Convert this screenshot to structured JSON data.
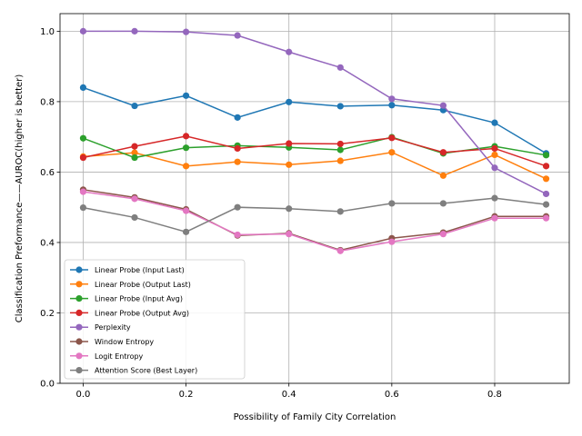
{
  "chart_data": {
    "type": "line",
    "title": "",
    "xlabel": "Possibility of Family City Correlation",
    "ylabel": "Classification Preformance——AUROC(higher is better)",
    "xlim": [
      -0.045,
      0.945
    ],
    "ylim": [
      0.0,
      1.05
    ],
    "grid": true,
    "legend_position": "lower-left",
    "x_ticks": [
      0.0,
      0.2,
      0.4,
      0.6,
      0.8
    ],
    "x_tick_labels": [
      "0.0",
      "0.2",
      "0.4",
      "0.6",
      "0.8"
    ],
    "y_ticks": [
      0.0,
      0.2,
      0.4,
      0.6,
      0.8,
      1.0
    ],
    "y_tick_labels": [
      "0.0",
      "0.2",
      "0.4",
      "0.6",
      "0.8",
      "1.0"
    ],
    "x": [
      0.0,
      0.1,
      0.2,
      0.3,
      0.4,
      0.5,
      0.6,
      0.7,
      0.8,
      0.9
    ],
    "series": [
      {
        "name": "Linear Probe (Input Last)",
        "color": "#1f77b4",
        "values": [
          0.84,
          0.788,
          0.817,
          0.755,
          0.799,
          0.787,
          0.79,
          0.776,
          0.74,
          0.653
        ]
      },
      {
        "name": "Linear Probe (Output Last)",
        "color": "#ff7f0e",
        "values": [
          0.644,
          0.655,
          0.617,
          0.629,
          0.621,
          0.632,
          0.656,
          0.59,
          0.649,
          0.581
        ]
      },
      {
        "name": "Linear Probe (Input Avg)",
        "color": "#2ca02c",
        "values": [
          0.696,
          0.641,
          0.669,
          0.675,
          0.67,
          0.663,
          0.699,
          0.653,
          0.673,
          0.648
        ]
      },
      {
        "name": "Linear Probe (Output Avg)",
        "color": "#d62728",
        "values": [
          0.641,
          0.673,
          0.702,
          0.667,
          0.681,
          0.68,
          0.697,
          0.656,
          0.667,
          0.617
        ]
      },
      {
        "name": "Perplexity",
        "color": "#9467bd",
        "values": [
          1.0,
          1.0,
          0.998,
          0.988,
          0.941,
          0.897,
          0.808,
          0.789,
          0.612,
          0.538
        ]
      },
      {
        "name": "Window Entropy",
        "color": "#8c564b",
        "values": [
          0.55,
          0.528,
          0.494,
          0.42,
          0.426,
          0.378,
          0.412,
          0.428,
          0.474,
          0.474
        ]
      },
      {
        "name": "Logit Entropy",
        "color": "#e377c2",
        "values": [
          0.544,
          0.524,
          0.49,
          0.422,
          0.424,
          0.376,
          0.402,
          0.424,
          0.469,
          0.469
        ]
      },
      {
        "name": "Attention Score (Best Layer)",
        "color": "#7f7f7f",
        "values": [
          0.499,
          0.471,
          0.43,
          0.5,
          0.496,
          0.488,
          0.511,
          0.511,
          0.526,
          0.508
        ]
      }
    ]
  }
}
